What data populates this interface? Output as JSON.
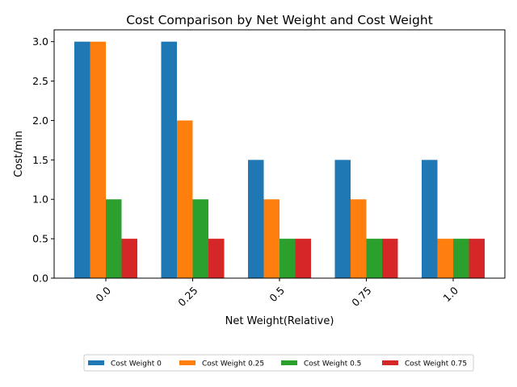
{
  "chart_data": {
    "type": "bar",
    "title": "Cost Comparison by Net Weight and Cost Weight",
    "xlabel": "Net Weight(Relative)",
    "ylabel": "Cost/min",
    "categories": [
      "0.0",
      "0.25",
      "0.5",
      "0.75",
      "1.0"
    ],
    "ylim": [
      0,
      3.15
    ],
    "yticks": [
      "0.0",
      "0.5",
      "1.0",
      "1.5",
      "2.0",
      "2.5",
      "3.0"
    ],
    "grid": false,
    "legend_position": "bottom-center",
    "series": [
      {
        "name": "Cost Weight 0",
        "color": "#1f77b4",
        "values": [
          3.0,
          3.0,
          1.5,
          1.5,
          1.5
        ]
      },
      {
        "name": "Cost Weight 0.25",
        "color": "#ff7f0e",
        "values": [
          3.0,
          2.0,
          1.0,
          1.0,
          0.5
        ]
      },
      {
        "name": "Cost Weight 0.5",
        "color": "#2ca02c",
        "values": [
          1.0,
          1.0,
          0.5,
          0.5,
          0.5
        ]
      },
      {
        "name": "Cost Weight 0.75",
        "color": "#d62728",
        "values": [
          0.5,
          0.5,
          0.5,
          0.5,
          0.5
        ]
      }
    ]
  }
}
